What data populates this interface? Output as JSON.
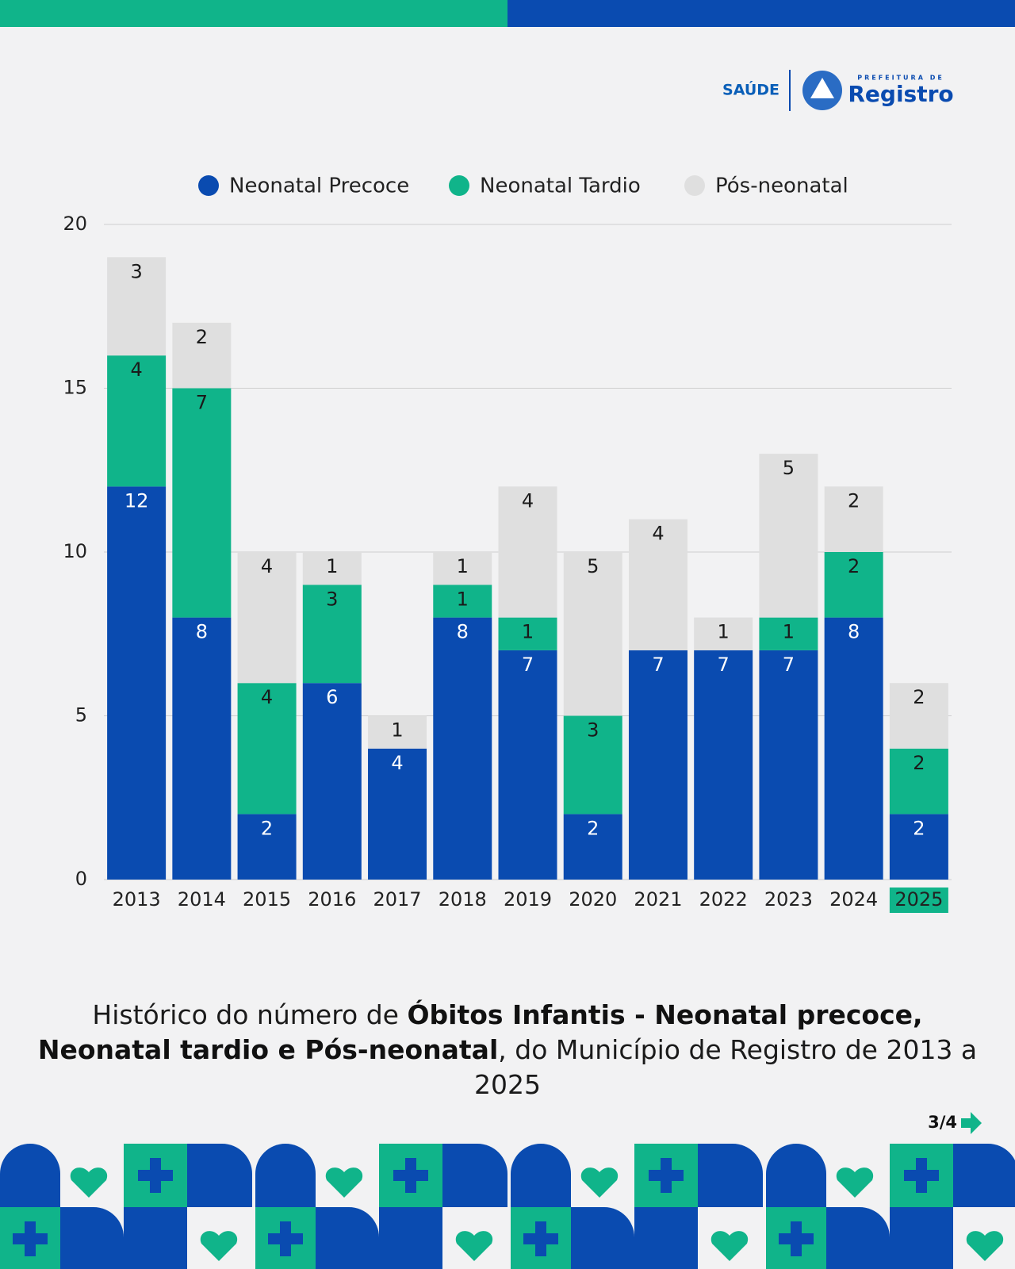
{
  "header": {
    "brand_health": "SAÚDE",
    "brand_small": "PREFEITURA DE",
    "brand_city": "Registro"
  },
  "chart_data": {
    "type": "stacked_bar",
    "categories": [
      "2013",
      "2014",
      "2015",
      "2016",
      "2017",
      "2018",
      "2019",
      "2020",
      "2021",
      "2022",
      "2023",
      "2024",
      "2025"
    ],
    "series": [
      {
        "name": "Neonatal Precoce",
        "color": "#0a4bb0",
        "label_color": "#ffffff",
        "values": [
          12,
          8,
          2,
          6,
          4,
          8,
          7,
          2,
          7,
          7,
          7,
          8,
          2
        ]
      },
      {
        "name": "Neonatal Tardio",
        "color": "#10b48a",
        "label_color": "#1a1a1a",
        "values": [
          4,
          7,
          4,
          3,
          0,
          1,
          1,
          3,
          0,
          0,
          1,
          2,
          2
        ]
      },
      {
        "name": "Pós-neonatal",
        "color": "#dfdfdf",
        "label_color": "#1a1a1a",
        "values": [
          3,
          2,
          4,
          1,
          1,
          1,
          4,
          5,
          4,
          1,
          5,
          2,
          2
        ]
      }
    ],
    "ylim": [
      0,
      20
    ],
    "yticks": [
      0,
      5,
      10,
      15,
      20
    ],
    "grid": true,
    "highlight": {
      "index": 12,
      "color": "#10b48a"
    }
  },
  "caption": {
    "parts": [
      {
        "text": "Histórico do número de ",
        "bold": false
      },
      {
        "text": "Óbitos Infantis - Neonatal precoce, Neonatal tardio e Pós-neonatal",
        "bold": true
      },
      {
        "text": ", do Município de Registro de 2013 a 2025",
        "bold": false
      }
    ]
  },
  "pager": "3/4"
}
